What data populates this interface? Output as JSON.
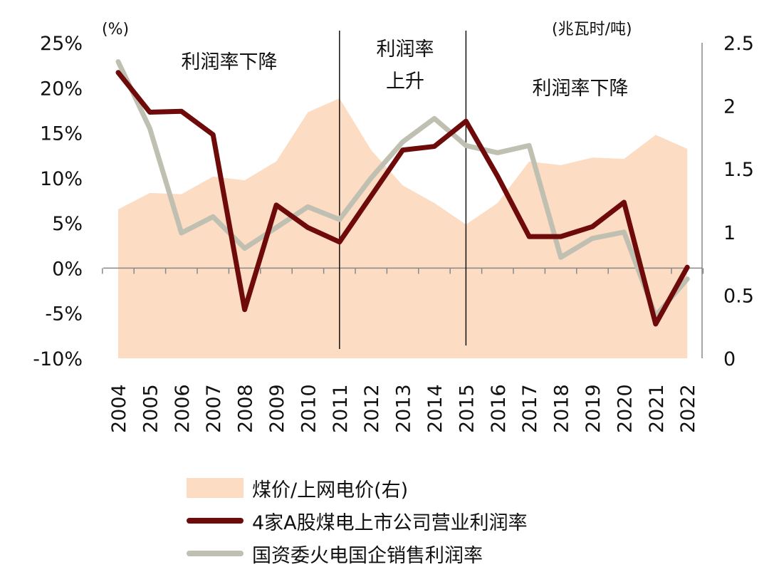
{
  "chart_data": {
    "type": "line",
    "categories": [
      "2004",
      "2005",
      "2006",
      "2007",
      "2008",
      "2009",
      "2010",
      "2011",
      "2012",
      "2013",
      "2014",
      "2015",
      "2016",
      "2017",
      "2018",
      "2019",
      "2020",
      "2021",
      "2022"
    ],
    "left_axis": {
      "unit_label": "(%)",
      "range": [
        -10,
        25
      ],
      "ticks": [
        -10,
        -5,
        0,
        5,
        10,
        15,
        20,
        25
      ],
      "tick_labels": [
        "-10%",
        "-5%",
        "0%",
        "5%",
        "10%",
        "15%",
        "20%",
        "25%"
      ]
    },
    "right_axis": {
      "unit_label": "(兆瓦时/吨)",
      "range": [
        0,
        2.5
      ],
      "ticks": [
        0,
        0.5,
        1,
        1.5,
        2,
        2.5
      ],
      "tick_labels": [
        "0",
        "0.5",
        "1",
        "1.5",
        "2",
        "2.5"
      ]
    },
    "series": [
      {
        "name": "煤价/上网电价(右)",
        "type": "area",
        "axis": "right",
        "color": "#fcdcc3",
        "values": [
          1.18,
          1.31,
          1.3,
          1.44,
          1.41,
          1.56,
          1.95,
          2.06,
          1.65,
          1.37,
          1.23,
          1.06,
          1.23,
          1.56,
          1.53,
          1.59,
          1.58,
          1.77,
          1.66
        ]
      },
      {
        "name": "4家A股煤电上市公司营业利润率",
        "type": "line",
        "axis": "left",
        "color": "#6e0a0a",
        "values": [
          21.7,
          17.3,
          17.4,
          14.8,
          -4.6,
          7.0,
          4.5,
          2.9,
          8.0,
          13.1,
          13.5,
          16.3,
          10.2,
          3.5,
          3.5,
          4.6,
          7.3,
          -6.2,
          0.1
        ]
      },
      {
        "name": "国资委火电国企销售利润率",
        "type": "line",
        "axis": "left",
        "color": "#bfbfb2",
        "values": [
          22.9,
          15.5,
          3.9,
          5.7,
          2.2,
          4.5,
          6.8,
          5.4,
          10.0,
          14.0,
          16.6,
          13.6,
          12.8,
          13.6,
          1.2,
          3.3,
          4.0,
          -5.3,
          -1.2
        ]
      }
    ],
    "annotations": [
      "利润率下降",
      "利润率",
      "上升",
      "利润率下降"
    ],
    "divider_years": [
      "2011",
      "2015"
    ]
  }
}
